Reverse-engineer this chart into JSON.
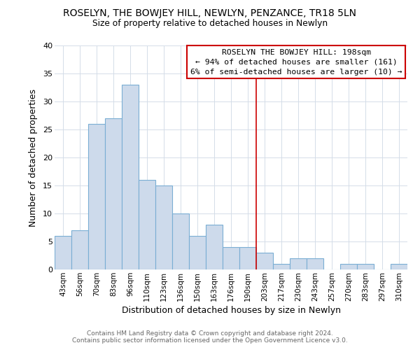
{
  "title": "ROSELYN, THE BOWJEY HILL, NEWLYN, PENZANCE, TR18 5LN",
  "subtitle": "Size of property relative to detached houses in Newlyn",
  "xlabel": "Distribution of detached houses by size in Newlyn",
  "ylabel": "Number of detached properties",
  "bar_labels": [
    "43sqm",
    "56sqm",
    "70sqm",
    "83sqm",
    "96sqm",
    "110sqm",
    "123sqm",
    "136sqm",
    "150sqm",
    "163sqm",
    "176sqm",
    "190sqm",
    "203sqm",
    "217sqm",
    "230sqm",
    "243sqm",
    "257sqm",
    "270sqm",
    "283sqm",
    "297sqm",
    "310sqm"
  ],
  "bar_values": [
    6,
    7,
    26,
    27,
    33,
    16,
    15,
    10,
    6,
    8,
    4,
    4,
    3,
    1,
    2,
    2,
    0,
    1,
    1,
    0,
    1
  ],
  "bar_color": "#cddaeb",
  "bar_edge_color": "#7aaed4",
  "ylim": [
    0,
    40
  ],
  "yticks": [
    0,
    5,
    10,
    15,
    20,
    25,
    30,
    35,
    40
  ],
  "vline_color": "#cc0000",
  "annotation_title": "ROSELYN THE BOWJEY HILL: 198sqm",
  "annotation_line1": "← 94% of detached houses are smaller (161)",
  "annotation_line2": "6% of semi-detached houses are larger (10) →",
  "annotation_box_color": "#ffffff",
  "annotation_box_edge": "#cc0000",
  "footer1": "Contains HM Land Registry data © Crown copyright and database right 2024.",
  "footer2": "Contains public sector information licensed under the Open Government Licence v3.0.",
  "background_color": "#ffffff",
  "grid_color": "#d4dde8"
}
